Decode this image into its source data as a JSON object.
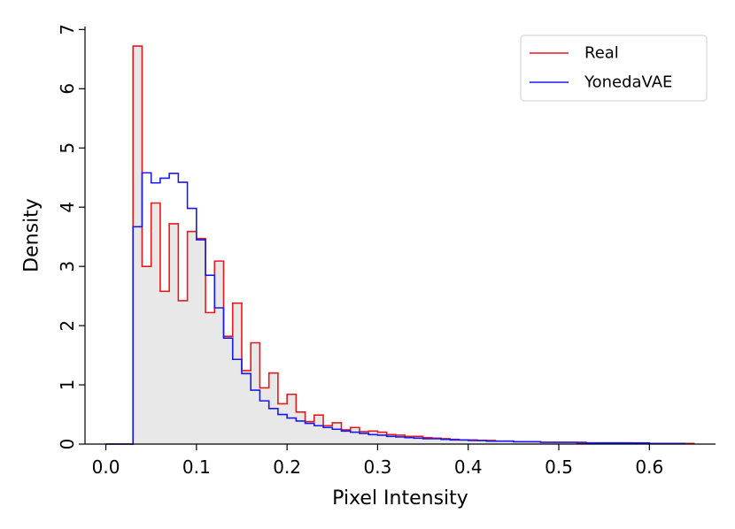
{
  "chart_data": {
    "type": "histogram",
    "title": "",
    "xlabel": "Pixel Intensity",
    "ylabel": "Density",
    "xlim": [
      -0.023,
      0.673
    ],
    "ylim": [
      0,
      7.05
    ],
    "xticks": [
      0.0,
      0.1,
      0.2,
      0.3,
      0.4,
      0.5,
      0.6
    ],
    "xtick_labels": [
      "0.0",
      "0.1",
      "0.2",
      "0.3",
      "0.4",
      "0.5",
      "0.6"
    ],
    "yticks": [
      0,
      1,
      2,
      3,
      4,
      5,
      6,
      7
    ],
    "ytick_labels": [
      "0",
      "1",
      "2",
      "3",
      "4",
      "5",
      "6",
      "7"
    ],
    "grid": false,
    "legend_position": "top-right",
    "series": [
      {
        "name": "Real",
        "color": "#e41a1c",
        "fill": "#e8e8e8",
        "style": "step-filled",
        "bin_start": 0.0,
        "bin_width": 0.01,
        "values": [
          0,
          0,
          0,
          6.72,
          3.0,
          4.07,
          2.58,
          3.72,
          2.42,
          3.59,
          3.47,
          2.22,
          3.09,
          1.82,
          2.38,
          1.24,
          1.71,
          0.95,
          1.2,
          0.68,
          0.84,
          0.54,
          0.38,
          0.49,
          0.31,
          0.36,
          0.24,
          0.28,
          0.21,
          0.22,
          0.2,
          0.16,
          0.15,
          0.13,
          0.13,
          0.11,
          0.1,
          0.09,
          0.08,
          0.07,
          0.07,
          0.06,
          0.06,
          0.05,
          0.05,
          0.04,
          0.04,
          0.04,
          0.03,
          0.03,
          0.03,
          0.03,
          0.02,
          0.02,
          0.02,
          0.02,
          0.02,
          0.02,
          0.01,
          0.01,
          0.01,
          0.01,
          0.01,
          0.01,
          0.01
        ]
      },
      {
        "name": "YonedaVAE",
        "color": "#1a1aee",
        "style": "step",
        "bin_start": 0.0,
        "bin_width": 0.01,
        "values": [
          0,
          0,
          0,
          3.67,
          4.58,
          4.41,
          4.49,
          4.57,
          4.42,
          3.98,
          3.45,
          2.85,
          2.3,
          1.79,
          1.43,
          1.19,
          0.91,
          0.73,
          0.6,
          0.5,
          0.44,
          0.39,
          0.35,
          0.31,
          0.28,
          0.25,
          0.22,
          0.2,
          0.18,
          0.16,
          0.15,
          0.13,
          0.12,
          0.11,
          0.1,
          0.09,
          0.09,
          0.08,
          0.07,
          0.07,
          0.06,
          0.06,
          0.05,
          0.05,
          0.05,
          0.04,
          0.04,
          0.04,
          0.03,
          0.03,
          0.03,
          0.03,
          0.03,
          0.02,
          0.02,
          0.02,
          0.02,
          0.02,
          0.02,
          0.02,
          0.01,
          0.01,
          0.01,
          0.01
        ]
      }
    ]
  }
}
